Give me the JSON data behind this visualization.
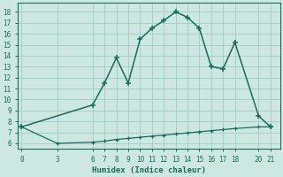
{
  "xlabel": "Humidex (Indice chaleur)",
  "bg_color": "#cce8e0",
  "grid_color": "#a8d0c8",
  "line_color": "#1a6b5a",
  "curve1_x": [
    0,
    6,
    7,
    8,
    9,
    10,
    11,
    12,
    13,
    14,
    15,
    16,
    17,
    18,
    20,
    21
  ],
  "curve1_y": [
    7.5,
    9.5,
    11.5,
    13.8,
    11.5,
    15.5,
    16.5,
    17.2,
    18.0,
    17.5,
    16.5,
    13.0,
    12.8,
    15.2,
    8.5,
    7.5
  ],
  "curve2_x": [
    0,
    3,
    6,
    7,
    8,
    9,
    10,
    11,
    12,
    13,
    14,
    15,
    16,
    17,
    18,
    20,
    21
  ],
  "curve2_y": [
    7.5,
    6.0,
    6.1,
    6.2,
    6.35,
    6.45,
    6.55,
    6.65,
    6.75,
    6.85,
    6.95,
    7.05,
    7.15,
    7.25,
    7.35,
    7.5,
    7.5
  ],
  "xticks": [
    0,
    3,
    6,
    7,
    8,
    9,
    10,
    11,
    12,
    13,
    14,
    15,
    16,
    17,
    18,
    20,
    21
  ],
  "yticks": [
    6,
    7,
    8,
    9,
    10,
    11,
    12,
    13,
    14,
    15,
    16,
    17,
    18
  ],
  "xlim": [
    -0.3,
    21.8
  ],
  "ylim": [
    5.5,
    18.8
  ],
  "figsize": [
    3.2,
    2.0
  ],
  "dpi": 100
}
